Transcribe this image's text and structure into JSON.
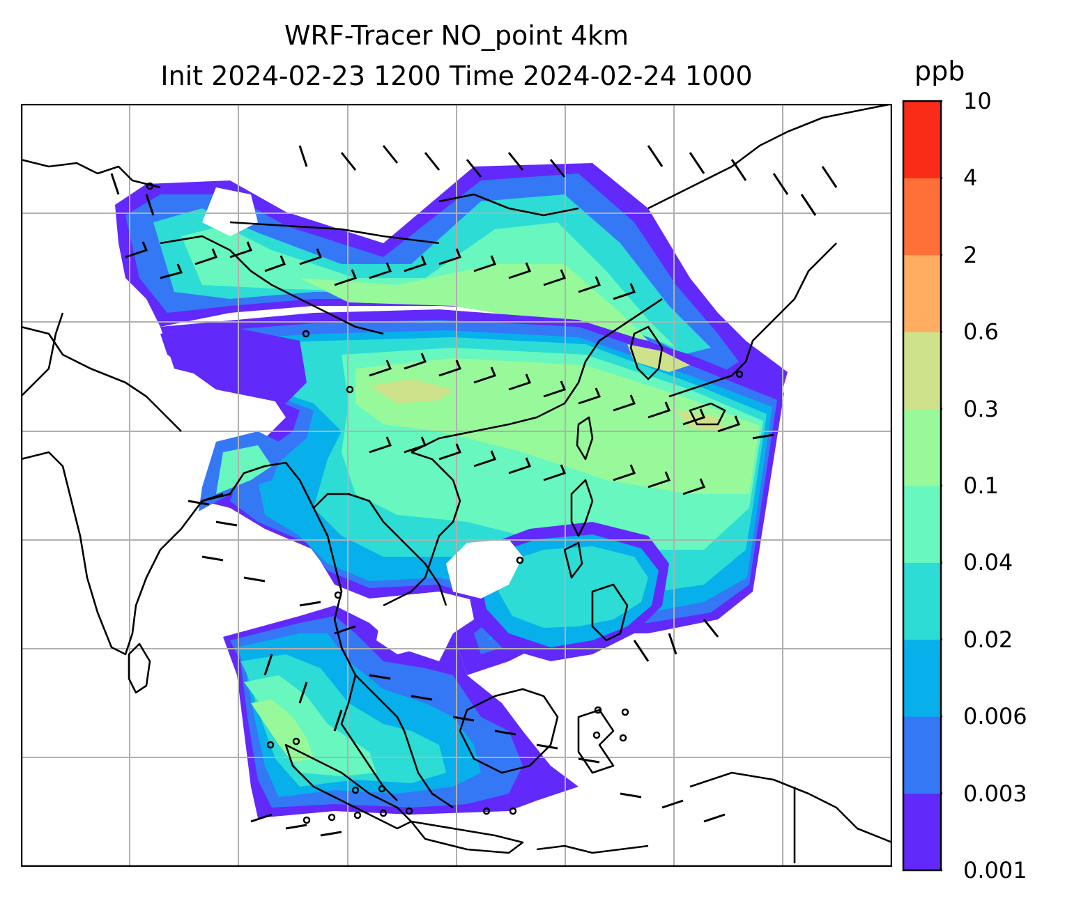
{
  "title": {
    "line1": "WRF-Tracer NO_point 4km",
    "line2": "Init 2024-02-23 1200 Time 2024-02-24 1000"
  },
  "colorbar": {
    "unit": "ppb",
    "levels": [
      "0.001",
      "0.003",
      "0.006",
      "0.02",
      "0.04",
      "0.1",
      "0.3",
      "0.6",
      "2",
      "4",
      "10"
    ],
    "colors": [
      "#6229fb",
      "#3478f6",
      "#07b0ea",
      "#2ddcd4",
      "#67f7bf",
      "#98f99a",
      "#cde28a",
      "#fead61",
      "#fe7038",
      "#fa2b17"
    ]
  },
  "map": {
    "gridlines": true,
    "background": "#ffffff",
    "coastline_color": "#000000",
    "grid_color": "#b0b0b0"
  }
}
